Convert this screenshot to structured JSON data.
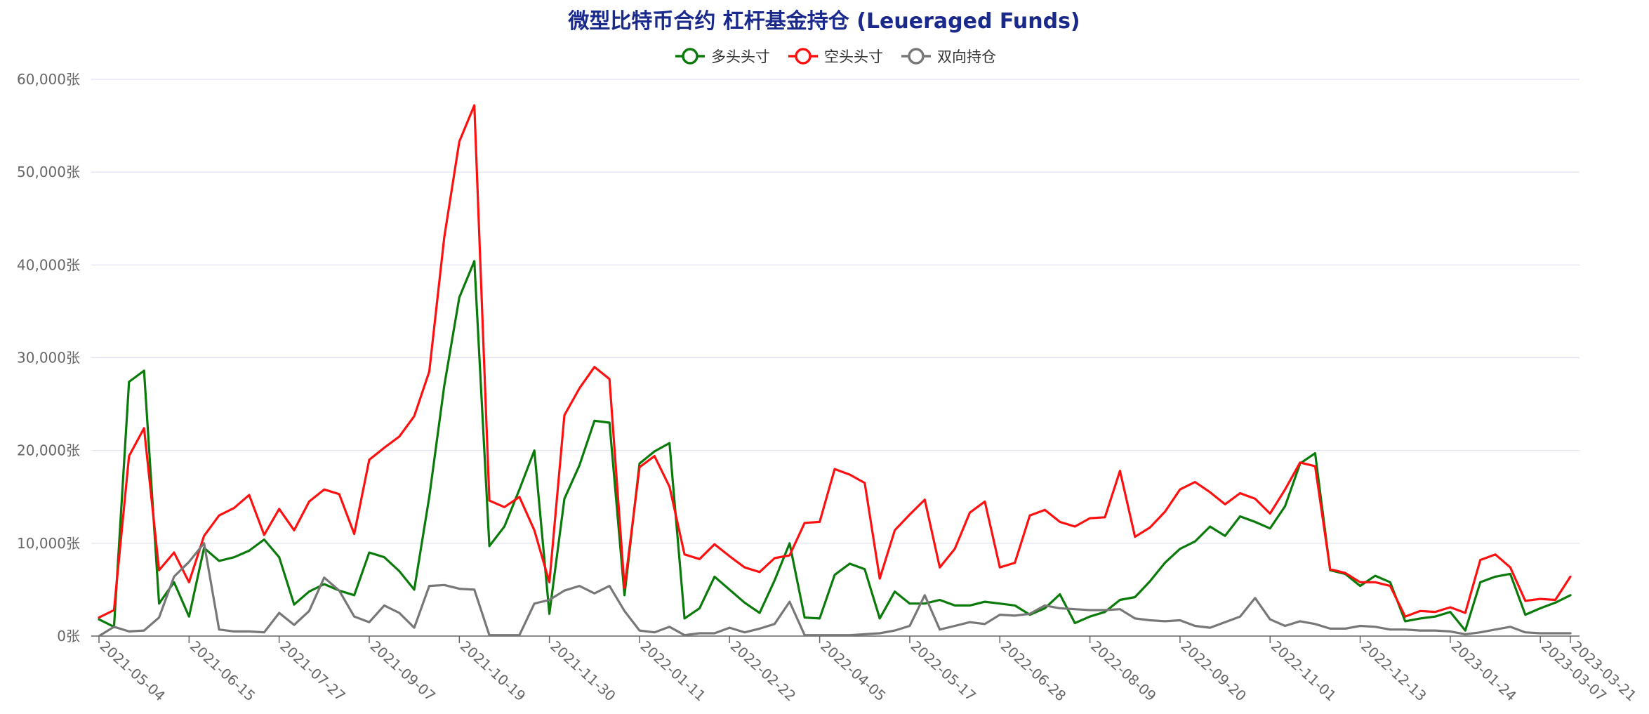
{
  "chart_data": {
    "type": "line",
    "title": "微型比特币合约 杠杆基金持仓 (Leueraged Funds)",
    "title_color": "#1a2a8c",
    "y_unit": "张",
    "ylim": [
      0,
      60000
    ],
    "y_ticks": [
      "0张",
      "10,000张",
      "20,000张",
      "30,000张",
      "40,000张",
      "50,000张",
      "60,000张"
    ],
    "y_tick_values": [
      0,
      10000,
      20000,
      30000,
      40000,
      50000,
      60000
    ],
    "x_tick_labels": [
      "2021-05-04",
      "2021-06-15",
      "2021-07-27",
      "2021-09-07",
      "2021-10-19",
      "2021-11-30",
      "2022-01-11",
      "2022-02-22",
      "2022-04-05",
      "2022-05-17",
      "2022-06-28",
      "2022-08-09",
      "2022-09-20",
      "2022-11-01",
      "2022-12-13",
      "2023-01-24",
      "2023-03-07",
      "2023-03-21"
    ],
    "x_tick_indices": [
      0,
      6,
      12,
      18,
      24,
      30,
      36,
      42,
      48,
      54,
      60,
      66,
      72,
      78,
      84,
      90,
      96,
      98
    ],
    "grid": true,
    "legend_position": "top-center",
    "series": [
      {
        "name": "多头头寸",
        "color": "#0a7a0a",
        "values": [
          1800,
          1000,
          27400,
          28600,
          3500,
          5800,
          2100,
          9500,
          8100,
          8500,
          9200,
          10400,
          8500,
          3400,
          4800,
          5600,
          4900,
          4400,
          9000,
          8500,
          7000,
          5000,
          15000,
          27000,
          36500,
          40400,
          9700,
          11800,
          15800,
          20000,
          2400,
          14800,
          18400,
          23200,
          23000,
          4400,
          18600,
          19900,
          20800,
          1900,
          3000,
          6400,
          5000,
          3600,
          2500,
          6000,
          10000,
          2000,
          1900,
          6600,
          7800,
          7200,
          1900,
          4800,
          3500,
          3500,
          3900,
          3300,
          3300,
          3700,
          3500,
          3300,
          2300,
          3000,
          4500,
          1400,
          2100,
          2600,
          3900,
          4200,
          5900,
          7900,
          9400,
          10200,
          11800,
          10800,
          12900,
          12300,
          11600,
          14000,
          18600,
          19700,
          7100,
          6700,
          5400,
          6500,
          5800,
          1600,
          1900,
          2100,
          2600,
          600,
          5800,
          6400,
          6700,
          2300,
          3000,
          3600,
          4400
        ]
      },
      {
        "name": "空头头寸",
        "color": "#ff1010",
        "values": [
          2000,
          2800,
          19400,
          22400,
          7100,
          9000,
          5800,
          10800,
          13000,
          13800,
          15200,
          10900,
          13700,
          11400,
          14500,
          15800,
          15300,
          11000,
          19000,
          20300,
          21500,
          23700,
          28500,
          43000,
          53300,
          57200,
          14600,
          13900,
          15000,
          11400,
          5800,
          23800,
          26700,
          29000,
          27700,
          5200,
          18200,
          19400,
          16100,
          8800,
          8300,
          9900,
          8600,
          7400,
          6900,
          8400,
          8700,
          12200,
          12300,
          18000,
          17400,
          16500,
          6200,
          11400,
          13100,
          14700,
          7400,
          9400,
          13300,
          14500,
          7400,
          7900,
          13000,
          13600,
          12300,
          11800,
          12700,
          12800,
          17800,
          10700,
          11700,
          13400,
          15800,
          16600,
          15500,
          14200,
          15400,
          14800,
          13200,
          15800,
          18700,
          18300,
          7200,
          6800,
          5800,
          5800,
          5400,
          2100,
          2700,
          2600,
          3100,
          2500,
          8200,
          8800,
          7400,
          3800,
          4000,
          3900,
          6400
        ]
      },
      {
        "name": "双向持仓",
        "color": "#777777",
        "values": [
          0,
          1000,
          500,
          600,
          2000,
          6400,
          8000,
          10000,
          700,
          500,
          500,
          400,
          2500,
          1200,
          2700,
          6300,
          4900,
          2100,
          1500,
          3300,
          2500,
          900,
          5400,
          5500,
          5100,
          5000,
          100,
          100,
          100,
          3500,
          3900,
          4900,
          5400,
          4600,
          5400,
          2700,
          600,
          400,
          1000,
          100,
          300,
          300,
          900,
          400,
          800,
          1300,
          3700,
          100,
          100,
          100,
          100,
          200,
          300,
          600,
          1100,
          4400,
          700,
          1100,
          1500,
          1300,
          2300,
          2200,
          2400,
          3300,
          3000,
          2900,
          2800,
          2800,
          2900,
          1900,
          1700,
          1600,
          1700,
          1100,
          900,
          1500,
          2100,
          4100,
          1800,
          1100,
          1600,
          1300,
          800,
          800,
          1100,
          1000,
          700,
          700,
          600,
          600,
          500,
          200,
          400,
          700,
          1000,
          400,
          300,
          300,
          300
        ]
      }
    ]
  }
}
